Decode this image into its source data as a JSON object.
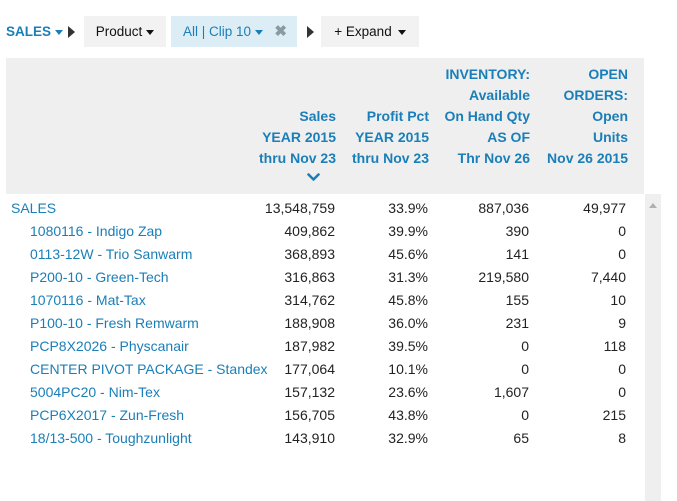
{
  "toolbar": {
    "sales_label": "SALES",
    "product_label": "Product",
    "clip_label": "All | Clip 10",
    "remove_symbol": "✖",
    "expand_label": "+ Expand"
  },
  "columns": {
    "sales": [
      "Sales",
      "YEAR 2015",
      "thru Nov 23"
    ],
    "profit": [
      "Profit Pct",
      "YEAR 2015",
      "thru Nov 23"
    ],
    "inventory": [
      "INVENTORY:",
      "Available",
      "On Hand Qty",
      "AS OF",
      "Thr Nov 26"
    ],
    "open_orders": [
      "OPEN",
      "ORDERS:",
      "Open",
      "Units",
      "Nov 26 2015"
    ]
  },
  "rows": [
    {
      "label": "SALES",
      "sales": "13,548,759",
      "profit": "33.9%",
      "inventory": "887,036",
      "open": "49,977"
    },
    {
      "label": "1080116 - Indigo Zap",
      "sales": "409,862",
      "profit": "39.9%",
      "inventory": "390",
      "open": "0"
    },
    {
      "label": "0113-12W - Trio Sanwarm",
      "sales": "368,893",
      "profit": "45.6%",
      "inventory": "141",
      "open": "0"
    },
    {
      "label": "P200-10 - Green-Tech",
      "sales": "316,863",
      "profit": "31.3%",
      "inventory": "219,580",
      "open": "7,440"
    },
    {
      "label": "1070116 - Mat-Tax",
      "sales": "314,762",
      "profit": "45.8%",
      "inventory": "155",
      "open": "10"
    },
    {
      "label": "P100-10 - Fresh Remwarm",
      "sales": "188,908",
      "profit": "36.0%",
      "inventory": "231",
      "open": "9"
    },
    {
      "label": "PCP8X2026 - Physcanair",
      "sales": "187,982",
      "profit": "39.5%",
      "inventory": "0",
      "open": "118"
    },
    {
      "label": "CENTER PIVOT PACKAGE - Standex",
      "sales": "177,064",
      "profit": "10.1%",
      "inventory": "0",
      "open": "0"
    },
    {
      "label": "5004PC20 - Nim-Tex",
      "sales": "157,132",
      "profit": "23.6%",
      "inventory": "1,607",
      "open": "0"
    },
    {
      "label": "PCP6X2017 - Zun-Fresh",
      "sales": "156,705",
      "profit": "43.8%",
      "inventory": "0",
      "open": "215"
    },
    {
      "label": "18/13-500 - Toughzunlight",
      "sales": "143,910",
      "profit": "32.9%",
      "inventory": "65",
      "open": "8"
    }
  ],
  "colors": {
    "accent": "#1a7fb8",
    "header_bg": "#efefef",
    "chip_bg": "#f2f2f2",
    "filter_chip_bg": "#dcedf6"
  }
}
